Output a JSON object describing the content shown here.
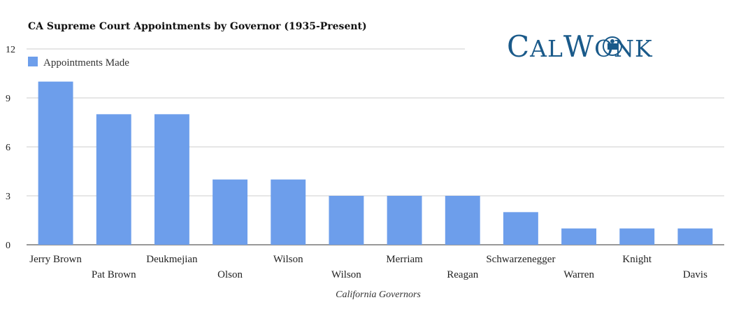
{
  "chart_data": {
    "type": "bar",
    "title": "CA Supreme Court Appointments by Governor (1935-Present)",
    "xlabel": "California Governors",
    "ylabel": "",
    "ylim": [
      0,
      12
    ],
    "yticks": [
      0,
      3,
      6,
      9,
      12
    ],
    "grid": true,
    "legend_position": "top-left",
    "categories": [
      "Jerry Brown",
      "Pat Brown",
      "Deukmejian",
      "Olson",
      "Wilson",
      "Wilson",
      "Merriam",
      "Reagan",
      "Schwarzenegger",
      "Warren",
      "Knight",
      "Davis"
    ],
    "series": [
      {
        "name": "Appointments Made",
        "values": [
          10,
          8,
          8,
          4,
          4,
          3,
          3,
          3,
          2,
          1,
          1,
          1
        ],
        "color": "#6d9eeb"
      }
    ]
  },
  "logo": {
    "text": "CALWONK",
    "color": "#1a5a8a"
  }
}
